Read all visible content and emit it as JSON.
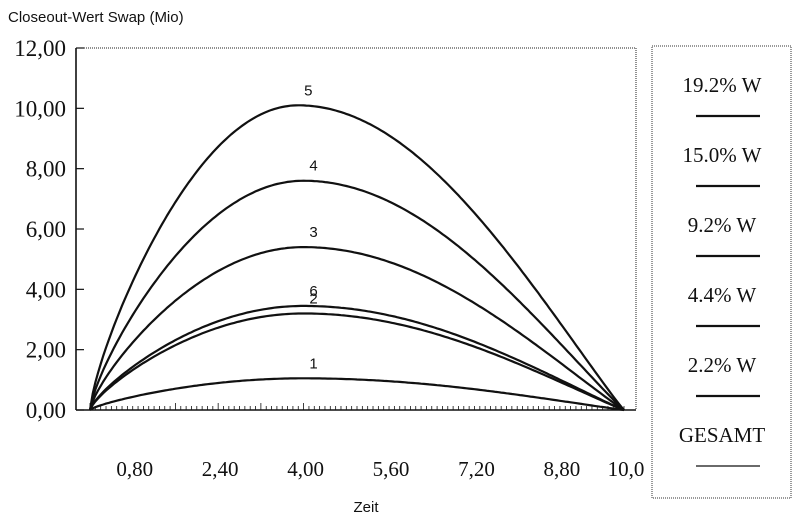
{
  "chart_data": {
    "type": "line",
    "ylabel": "Closeout-Wert Swap (Mio)",
    "xlabel": "Zeit",
    "xlim": [
      0.0,
      10.0
    ],
    "ylim": [
      0.0,
      12.0
    ],
    "y_ticks": [
      "0,00",
      "2,00",
      "4,00",
      "6,00",
      "8,00",
      "10,00",
      "12,00"
    ],
    "y_tick_values": [
      0,
      2,
      4,
      6,
      8,
      10,
      12
    ],
    "x_ticks": [
      "0,80",
      "2,40",
      "4,00",
      "5,60",
      "7,20",
      "8,80",
      "10,0"
    ],
    "x_tick_values": [
      0.8,
      2.4,
      4.0,
      5.6,
      7.2,
      8.8,
      10.0
    ],
    "grid": false,
    "legend_position": "right",
    "series": [
      {
        "label": "5",
        "x_peak": 3.9,
        "y_peak": 10.1,
        "values_at_x": {
          "x": [
            0,
            0.8,
            2.4,
            4.0,
            5.6,
            7.2,
            8.8,
            10.0
          ],
          "y": [
            0.0,
            5.6,
            9.1,
            10.1,
            9.2,
            6.9,
            3.3,
            0.0
          ]
        }
      },
      {
        "label": "4",
        "x_peak": 4.0,
        "y_peak": 7.6,
        "values_at_x": {
          "x": [
            0,
            0.8,
            2.4,
            4.0,
            5.6,
            7.2,
            8.8,
            10.0
          ],
          "y": [
            0.0,
            3.9,
            6.7,
            7.6,
            7.0,
            5.2,
            2.6,
            0.0
          ]
        }
      },
      {
        "label": "3",
        "x_peak": 4.0,
        "y_peak": 5.4,
        "values_at_x": {
          "x": [
            0,
            0.8,
            2.4,
            4.0,
            5.6,
            7.2,
            8.8,
            10.0
          ],
          "y": [
            0.0,
            2.6,
            4.7,
            5.4,
            5.0,
            3.8,
            1.9,
            0.0
          ]
        }
      },
      {
        "label": "6",
        "x_peak": 4.0,
        "y_peak": 3.45,
        "values_at_x": {
          "x": [
            0,
            0.8,
            2.4,
            4.0,
            5.6,
            7.2,
            8.8,
            10.0
          ],
          "y": [
            0.0,
            1.8,
            3.0,
            3.45,
            3.2,
            2.5,
            1.3,
            0.0
          ]
        }
      },
      {
        "label": "2",
        "x_peak": 4.0,
        "y_peak": 3.2,
        "values_at_x": {
          "x": [
            0,
            0.8,
            2.4,
            4.0,
            5.6,
            7.2,
            8.8,
            10.0
          ],
          "y": [
            0.0,
            1.7,
            2.8,
            3.2,
            3.0,
            2.3,
            1.2,
            0.0
          ]
        }
      },
      {
        "label": "1",
        "x_peak": 4.0,
        "y_peak": 1.05,
        "values_at_x": {
          "x": [
            0,
            0.8,
            2.4,
            4.0,
            5.6,
            7.2,
            8.8,
            10.0
          ],
          "y": [
            0.0,
            0.6,
            0.95,
            1.05,
            1.0,
            0.8,
            0.45,
            0.0
          ]
        }
      }
    ],
    "legend": [
      "19.2% W",
      "15.0% W",
      "9.2% W",
      "4.4% W",
      "2.2% W",
      "GESAMT"
    ]
  }
}
